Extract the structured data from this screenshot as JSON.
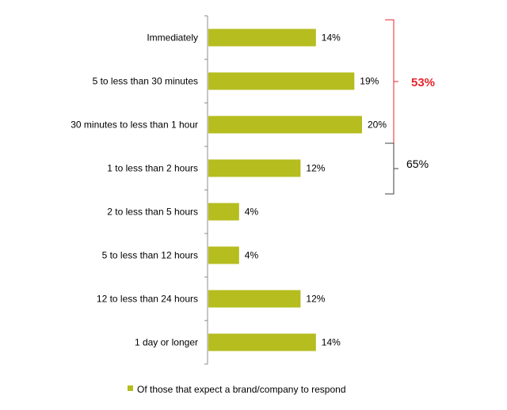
{
  "colors": {
    "bar": "#b5bd1f",
    "axis": "#8c8c8c",
    "bracket_red": "#e8242b",
    "bracket_dark": "#404040",
    "highlight": "#e8242b"
  },
  "chart_data": {
    "type": "bar",
    "orientation": "horizontal",
    "categories": [
      "Immediately",
      "5 to less than 30 minutes",
      "30 minutes to less than 1 hour",
      "1  to less than 2 hours",
      "2 to less than 5 hours",
      "5 to less than 12 hours",
      "12 to less than 24 hours",
      "1 day or longer"
    ],
    "series": [
      {
        "name": "Of those that expect a brand/company to respond",
        "values": [
          14,
          19,
          20,
          12,
          4,
          4,
          12,
          14
        ]
      }
    ],
    "value_labels": [
      "14%",
      "19%",
      "20%",
      "12%",
      "4%",
      "4%",
      "12%",
      "14%"
    ],
    "xlim": [
      0,
      22
    ],
    "grid": false,
    "legend_position": "bottom-center",
    "annotations": [
      {
        "label": "53%",
        "from_category": 0,
        "to_category": 2,
        "color": "red",
        "bold": true
      },
      {
        "label": "65%",
        "from_category": 0,
        "to_category": 3,
        "color": "dark",
        "bold": false
      }
    ]
  }
}
